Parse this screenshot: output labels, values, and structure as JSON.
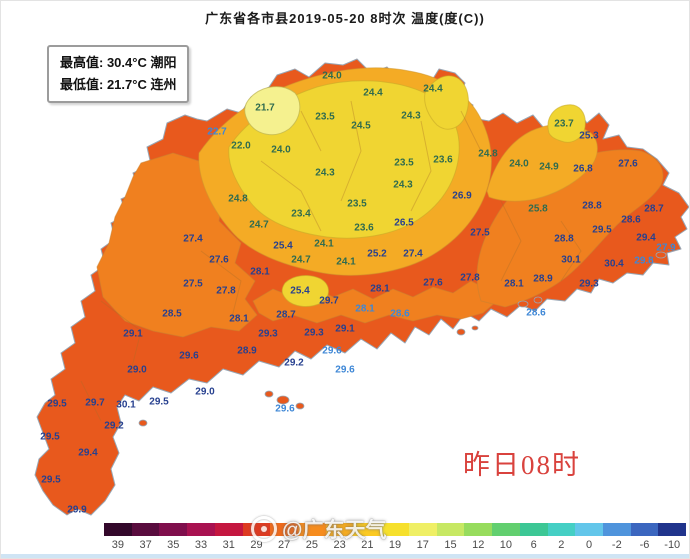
{
  "title": "广东省各市县2019-05-20 8时次 温度(度(C))",
  "legend_box": {
    "max_line": "最高值: 30.4°C 潮阳",
    "min_line": "最低值: 21.7°C 连州"
  },
  "overlay_label": "昨日08时",
  "watermark": "@广东天气",
  "colorbar": {
    "ticks": [
      "39",
      "37",
      "35",
      "33",
      "31",
      "29",
      "27",
      "25",
      "23",
      "21",
      "19",
      "17",
      "15",
      "12",
      "10",
      "6",
      "2",
      "0",
      "-2",
      "-6",
      "-10"
    ],
    "colors": [
      "#33082b",
      "#590c3e",
      "#7f0e4c",
      "#a81150",
      "#c4163f",
      "#dd3a21",
      "#ee6a1c",
      "#f68c1e",
      "#f9ad1f",
      "#fbc921",
      "#f6e02c",
      "#efef65",
      "#c7e863",
      "#97dc5d",
      "#62cf6f",
      "#3cc795",
      "#45cfc4",
      "#63c6ea",
      "#4f94dc",
      "#3b66bf",
      "#20348c"
    ]
  },
  "map": {
    "zone_colors": {
      "z29": "#e8591d",
      "z27": "#f0801f",
      "z25": "#f4ab25",
      "z23": "#f0d532",
      "z21": "#f5f18f"
    },
    "label_colors": {
      "y": "#2f6b4f",
      "o": "#27408f",
      "c": "#3e87d6"
    },
    "labels": [
      [
        331,
        75,
        "24.0",
        "y"
      ],
      [
        372,
        92,
        "24.4",
        "y"
      ],
      [
        432,
        88,
        "24.4",
        "y"
      ],
      [
        264,
        107,
        "21.7",
        "y"
      ],
      [
        324,
        116,
        "23.5",
        "y"
      ],
      [
        360,
        125,
        "24.5",
        "y"
      ],
      [
        410,
        115,
        "24.3",
        "y"
      ],
      [
        216,
        131,
        "22.7",
        "c"
      ],
      [
        240,
        145,
        "22.0",
        "y"
      ],
      [
        280,
        149,
        "24.0",
        "y"
      ],
      [
        563,
        123,
        "23.7",
        "y"
      ],
      [
        588,
        135,
        "25.3",
        "o"
      ],
      [
        403,
        162,
        "23.5",
        "y"
      ],
      [
        442,
        159,
        "23.6",
        "y"
      ],
      [
        487,
        153,
        "24.8",
        "y"
      ],
      [
        518,
        163,
        "24.0",
        "y"
      ],
      [
        548,
        166,
        "24.9",
        "y"
      ],
      [
        582,
        168,
        "26.8",
        "o"
      ],
      [
        627,
        163,
        "27.6",
        "o"
      ],
      [
        324,
        172,
        "24.3",
        "y"
      ],
      [
        237,
        198,
        "24.8",
        "y"
      ],
      [
        258,
        224,
        "24.7",
        "y"
      ],
      [
        300,
        213,
        "23.4",
        "y"
      ],
      [
        356,
        203,
        "23.5",
        "y"
      ],
      [
        402,
        184,
        "24.3",
        "y"
      ],
      [
        363,
        227,
        "23.6",
        "y"
      ],
      [
        403,
        222,
        "26.5",
        "o"
      ],
      [
        461,
        195,
        "26.9",
        "o"
      ],
      [
        537,
        208,
        "25.8",
        "y"
      ],
      [
        591,
        205,
        "28.8",
        "o"
      ],
      [
        653,
        208,
        "28.7",
        "o"
      ],
      [
        630,
        219,
        "28.6",
        "o"
      ],
      [
        601,
        229,
        "29.5",
        "o"
      ],
      [
        645,
        237,
        "29.4",
        "o"
      ],
      [
        665,
        247,
        "27.9",
        "c"
      ],
      [
        643,
        260,
        "29.8",
        "c"
      ],
      [
        613,
        263,
        "30.4",
        "o"
      ],
      [
        570,
        259,
        "30.1",
        "o"
      ],
      [
        563,
        238,
        "28.8",
        "o"
      ],
      [
        479,
        232,
        "27.5",
        "o"
      ],
      [
        192,
        238,
        "27.4",
        "o"
      ],
      [
        282,
        245,
        "25.4",
        "o"
      ],
      [
        323,
        243,
        "24.1",
        "y"
      ],
      [
        300,
        259,
        "24.7",
        "y"
      ],
      [
        345,
        261,
        "24.1",
        "y"
      ],
      [
        376,
        253,
        "25.2",
        "o"
      ],
      [
        412,
        253,
        "27.4",
        "o"
      ],
      [
        218,
        259,
        "27.6",
        "o"
      ],
      [
        259,
        271,
        "28.1",
        "o"
      ],
      [
        192,
        283,
        "27.5",
        "o"
      ],
      [
        225,
        290,
        "27.8",
        "o"
      ],
      [
        299,
        290,
        "25.4",
        "o"
      ],
      [
        432,
        282,
        "27.6",
        "o"
      ],
      [
        469,
        277,
        "27.8",
        "o"
      ],
      [
        513,
        283,
        "28.1",
        "o"
      ],
      [
        542,
        278,
        "28.9",
        "o"
      ],
      [
        588,
        283,
        "29.3",
        "o"
      ],
      [
        328,
        300,
        "29.7",
        "o"
      ],
      [
        379,
        288,
        "28.1",
        "o"
      ],
      [
        364,
        308,
        "28.1",
        "c"
      ],
      [
        399,
        313,
        "28.6",
        "c"
      ],
      [
        171,
        313,
        "28.5",
        "o"
      ],
      [
        238,
        318,
        "28.1",
        "o"
      ],
      [
        285,
        314,
        "28.7",
        "o"
      ],
      [
        267,
        333,
        "29.3",
        "o"
      ],
      [
        313,
        332,
        "29.3",
        "o"
      ],
      [
        344,
        328,
        "29.1",
        "o"
      ],
      [
        132,
        333,
        "29.1",
        "o"
      ],
      [
        188,
        355,
        "29.6",
        "o"
      ],
      [
        246,
        350,
        "28.9",
        "o"
      ],
      [
        331,
        350,
        "29.6",
        "c"
      ],
      [
        293,
        362,
        "29.2",
        "o"
      ],
      [
        344,
        369,
        "29.6",
        "c"
      ],
      [
        136,
        369,
        "29.0",
        "o"
      ],
      [
        204,
        391,
        "29.0",
        "o"
      ],
      [
        535,
        312,
        "28.6",
        "c"
      ],
      [
        284,
        408,
        "29.6",
        "c"
      ],
      [
        56,
        403,
        "29.5",
        "o"
      ],
      [
        94,
        402,
        "29.7",
        "o"
      ],
      [
        125,
        404,
        "30.1",
        "o"
      ],
      [
        158,
        401,
        "29.5",
        "o"
      ],
      [
        113,
        425,
        "29.2",
        "o"
      ],
      [
        49,
        436,
        "29.5",
        "o"
      ],
      [
        87,
        452,
        "29.4",
        "o"
      ],
      [
        50,
        479,
        "29.5",
        "o"
      ],
      [
        76,
        509,
        "29.9",
        "o"
      ]
    ]
  }
}
